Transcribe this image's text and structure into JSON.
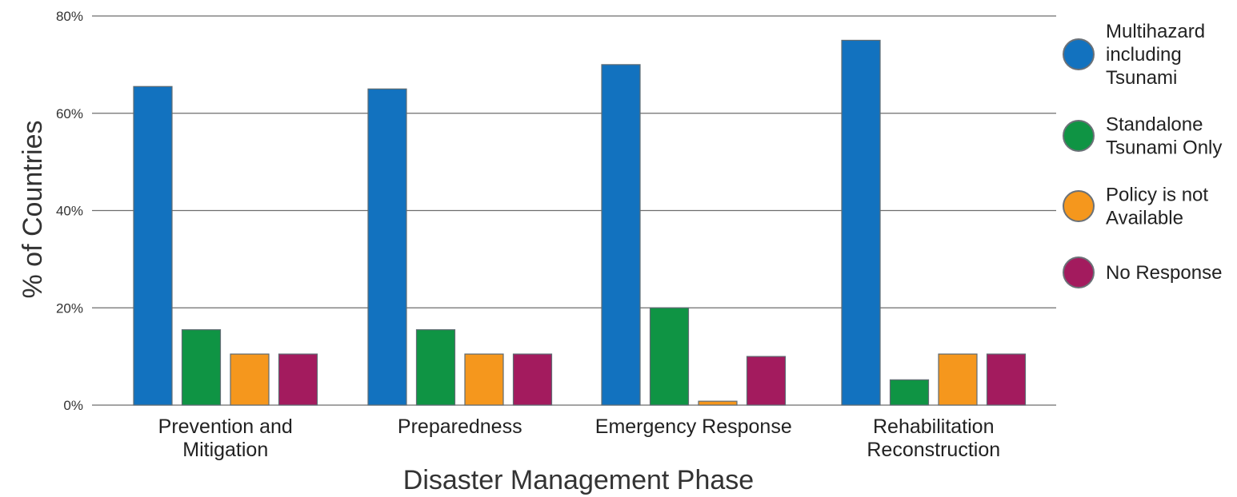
{
  "chart_data": {
    "type": "bar",
    "categories": [
      [
        "Prevention and",
        "Mitigation"
      ],
      [
        "Preparedness"
      ],
      [
        "Emergency Response"
      ],
      [
        "Rehabilitation",
        "Reconstruction"
      ]
    ],
    "series": [
      {
        "name": [
          "Multihazard",
          "including",
          "Tsunami"
        ],
        "color": "#1272bf",
        "values": [
          65.5,
          65,
          70,
          75
        ]
      },
      {
        "name": [
          "Standalone",
          "Tsunami Only"
        ],
        "color": "#0f9444",
        "values": [
          15.5,
          15.5,
          20,
          5.2
        ]
      },
      {
        "name": [
          "Policy is not",
          "Available"
        ],
        "color": "#f5971d",
        "values": [
          10.5,
          10.5,
          0.8,
          10.5
        ]
      },
      {
        "name": [
          "No Response"
        ],
        "color": "#a31b5e",
        "values": [
          10.5,
          10.5,
          10,
          10.5
        ]
      }
    ],
    "xlabel": "Disaster Management Phase",
    "ylabel": "% of Countries",
    "ylim": [
      0,
      80
    ],
    "yticks": [
      "0%",
      "20%",
      "40%",
      "60%",
      "80%"
    ],
    "ytick_values": [
      0,
      20,
      40,
      60,
      80
    ],
    "grid": "horizontal",
    "legend_position": "right"
  }
}
